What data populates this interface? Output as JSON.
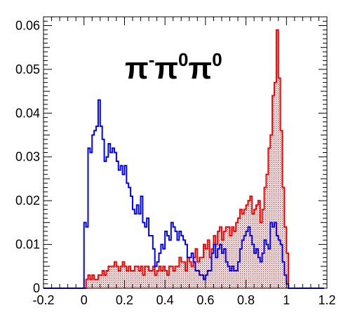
{
  "chart_data": {
    "type": "histogram",
    "title": "π⁻π⁰π⁰",
    "title_parts": {
      "base1": "π",
      "sup1": "-",
      "base2": "π",
      "sup2": "0",
      "base3": "π",
      "sup3": "0"
    },
    "xlim": [
      -0.2,
      1.2
    ],
    "ylim": [
      0,
      0.062
    ],
    "x_ticks": [
      -0.2,
      0,
      0.2,
      0.4,
      0.6,
      0.8,
      1,
      1.2
    ],
    "x_tick_labels": [
      "-0.2",
      "0",
      "0.2",
      "0.4",
      "0.6",
      "0.8",
      "1",
      "1.2"
    ],
    "y_ticks": [
      0,
      0.01,
      0.02,
      0.03,
      0.04,
      0.05,
      0.06
    ],
    "y_tick_labels": [
      "0",
      "0.01",
      "0.02",
      "0.03",
      "0.04",
      "0.05",
      "0.06"
    ],
    "grid": false,
    "legend": "none",
    "bin_start": 0,
    "bin_width": 0.01,
    "series": [
      {
        "color": "#ff0000",
        "fill": "hatched-dots",
        "values": [
          0.0,
          0.002,
          0.003,
          0.002,
          0.003,
          0.002,
          0.002,
          0.003,
          0.003,
          0.004,
          0.003,
          0.004,
          0.005,
          0.005,
          0.005,
          0.006,
          0.005,
          0.004,
          0.005,
          0.006,
          0.005,
          0.004,
          0.005,
          0.004,
          0.004,
          0.005,
          0.005,
          0.004,
          0.005,
          0.003,
          0.005,
          0.005,
          0.004,
          0.004,
          0.005,
          0.003,
          0.004,
          0.005,
          0.004,
          0.005,
          0.004,
          0.003,
          0.005,
          0.005,
          0.004,
          0.005,
          0.005,
          0.007,
          0.006,
          0.006,
          0.004,
          0.007,
          0.006,
          0.005,
          0.007,
          0.009,
          0.006,
          0.007,
          0.007,
          0.01,
          0.009,
          0.011,
          0.007,
          0.009,
          0.012,
          0.01,
          0.013,
          0.014,
          0.011,
          0.013,
          0.014,
          0.014,
          0.012,
          0.014,
          0.013,
          0.015,
          0.016,
          0.018,
          0.017,
          0.018,
          0.019,
          0.02,
          0.021,
          0.017,
          0.018,
          0.019,
          0.02,
          0.015,
          0.018,
          0.023,
          0.026,
          0.032,
          0.035,
          0.044,
          0.047,
          0.059,
          0.048,
          0.036,
          0.023,
          0.014,
          0.008,
          0.0,
          0.0
        ]
      },
      {
        "color": "#0000ff",
        "fill": "none",
        "values": [
          0.015,
          0.014,
          0.032,
          0.031,
          0.035,
          0.036,
          0.037,
          0.043,
          0.037,
          0.034,
          0.029,
          0.03,
          0.033,
          0.031,
          0.032,
          0.031,
          0.029,
          0.027,
          0.028,
          0.026,
          0.028,
          0.024,
          0.023,
          0.021,
          0.018,
          0.017,
          0.019,
          0.017,
          0.021,
          0.015,
          0.014,
          0.016,
          0.012,
          0.012,
          0.009,
          0.005,
          0.006,
          0.008,
          0.01,
          0.009,
          0.013,
          0.012,
          0.011,
          0.015,
          0.014,
          0.013,
          0.011,
          0.013,
          0.012,
          0.011,
          0.01,
          0.007,
          0.007,
          0.008,
          0.006,
          0.004,
          0.004,
          0.003,
          0.003,
          0.002,
          0.003,
          0.004,
          0.004,
          0.008,
          0.01,
          0.007,
          0.009,
          0.01,
          0.008,
          0.009,
          0.006,
          0.005,
          0.004,
          0.005,
          0.004,
          0.004,
          0.006,
          0.009,
          0.011,
          0.012,
          0.013,
          0.014,
          0.012,
          0.01,
          0.008,
          0.009,
          0.007,
          0.006,
          0.008,
          0.011,
          0.01,
          0.009,
          0.015,
          0.014,
          0.015,
          0.012,
          0.011,
          0.01,
          0.006,
          0.003,
          0.001,
          0.0,
          0.0
        ]
      }
    ]
  }
}
